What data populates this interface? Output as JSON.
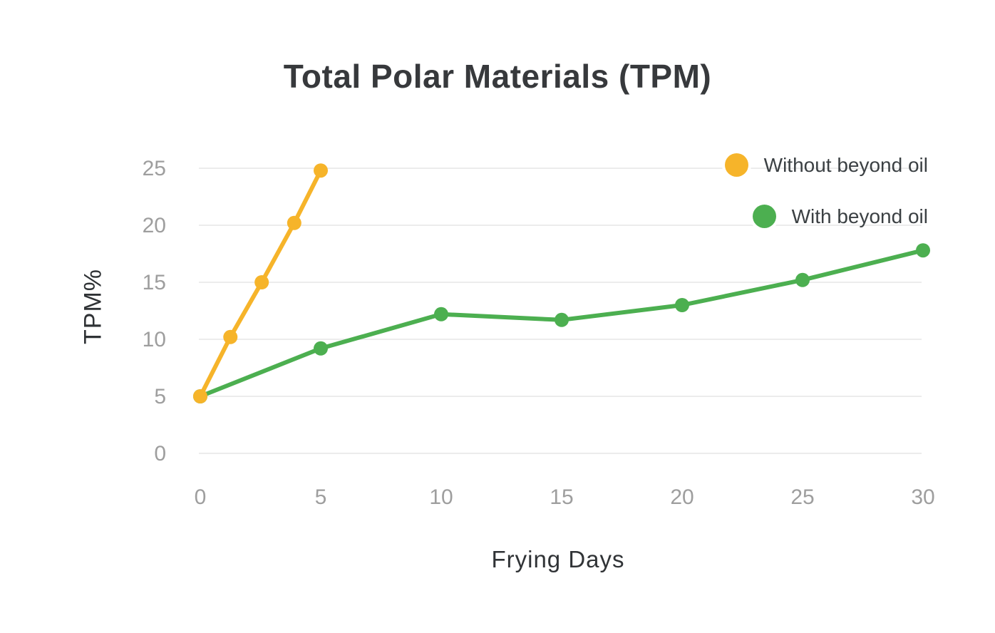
{
  "colors": {
    "background": "#FFFFFF",
    "grid": "#ECECEC",
    "tick_label": "#9E9E9E",
    "title": "#37393C",
    "axis_label": "#303336",
    "legend_text": "#3B4043",
    "series_yellow": "#F6B42A",
    "series_green": "#4CAF50"
  },
  "chart_data": {
    "type": "line",
    "title": "Total Polar Materials (TPM)",
    "xlabel": "Frying Days",
    "ylabel": "TPM%",
    "xlim": [
      0,
      30
    ],
    "ylim": [
      0,
      25
    ],
    "x_ticks": [
      0,
      5,
      10,
      15,
      20,
      25,
      30
    ],
    "y_ticks": [
      0,
      5,
      10,
      15,
      20,
      25
    ],
    "grid": "horizontal-only",
    "legend_position": "top-right",
    "series": [
      {
        "name": "Without beyond oil",
        "color": "#F6B42A",
        "x": [
          0,
          1.25,
          2.55,
          3.9,
          5
        ],
        "y": [
          5,
          10.2,
          15,
          20.2,
          24.8
        ]
      },
      {
        "name": "With beyond oil",
        "color": "#4CAF50",
        "x": [
          0,
          5,
          10,
          15,
          20,
          25,
          30
        ],
        "y": [
          5,
          9.2,
          12.2,
          11.7,
          13,
          15.2,
          17.8
        ]
      }
    ]
  }
}
